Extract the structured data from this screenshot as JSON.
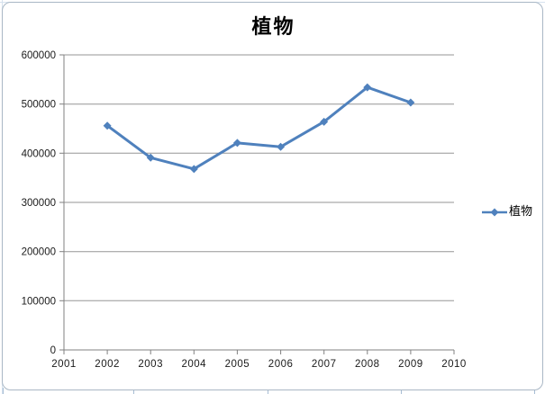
{
  "chart_data": {
    "type": "line",
    "title": "植物",
    "x": [
      2002,
      2003,
      2004,
      2005,
      2006,
      2007,
      2008,
      2009
    ],
    "series": [
      {
        "name": "植物",
        "values": [
          456000,
          391000,
          368000,
          421000,
          413000,
          464000,
          534000,
          503000
        ]
      }
    ],
    "x_axis_ticks": [
      "2001",
      "2002",
      "2003",
      "2004",
      "2005",
      "2006",
      "2007",
      "2008",
      "2009",
      "2010"
    ],
    "y_axis_ticks": [
      "0",
      "100000",
      "200000",
      "300000",
      "400000",
      "500000",
      "600000"
    ],
    "xlim": [
      2001,
      2010
    ],
    "ylim": [
      0,
      600000
    ],
    "y_tick_step": 100000,
    "grid": "horizontal",
    "legend_position": "right",
    "legend_label": "植物",
    "marker": "diamond",
    "colors": {
      "series": "#4F81BD",
      "gridline": "#969696",
      "axis": "#808080",
      "tick_text": "#1a1a1a",
      "chart_border": "#A9B7C5",
      "sheet_line": "#A7BDD4"
    }
  }
}
